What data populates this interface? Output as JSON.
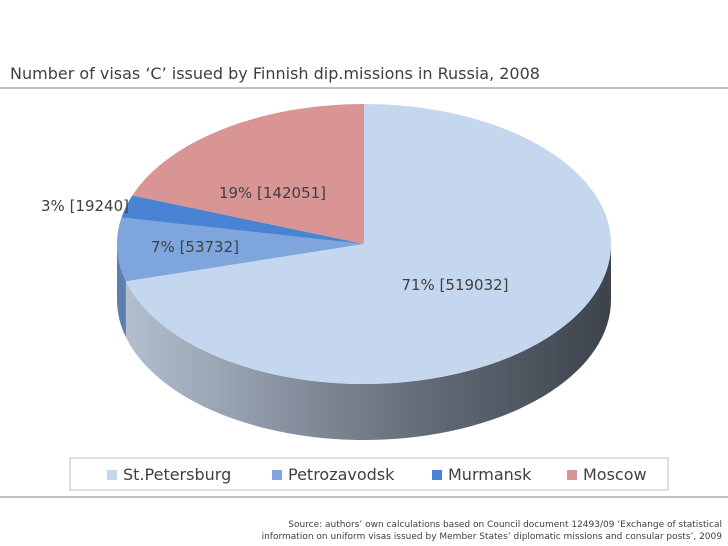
{
  "chart_data": {
    "type": "pie",
    "title": "Number of visas ‘C’ issued by Finnish dip.missions in Russia, 2008",
    "categories": [
      "St.Petersburg",
      "Petrozavodsk",
      "Murmansk",
      "Moscow"
    ],
    "values": [
      519032,
      53732,
      19240,
      142051
    ],
    "value_labels": [
      "71% [519032]",
      "7% [53732]",
      "3% [19240]",
      "19% [142051]"
    ],
    "colors": [
      "#c5d6ef",
      "#7ea6dd",
      "#4a82d4",
      "#d99594"
    ],
    "legend": "bottom",
    "source": "Source: authors’ own calculations based on Council document 12493/09 ‘Exchange of statistical information on uniform visas issued by Member States’ diplomatic missions and consular posts’, 2009"
  }
}
